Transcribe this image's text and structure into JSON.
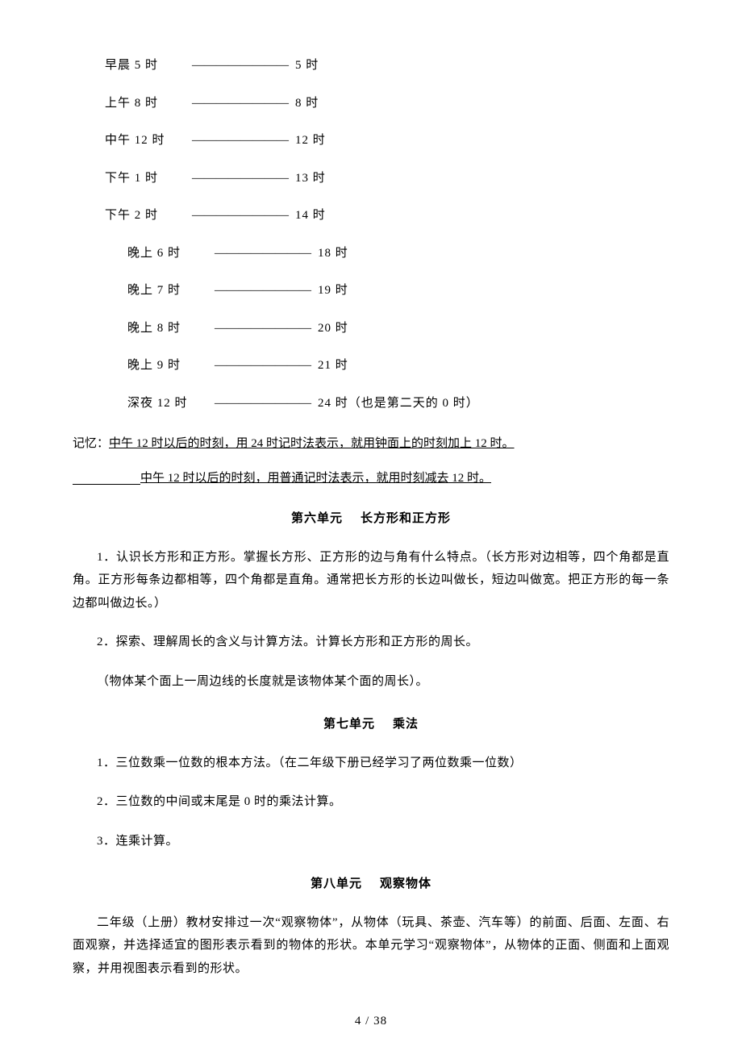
{
  "timeRows": [
    {
      "pad": "pad-0",
      "left": "早晨 5 时",
      "dash": "――――――――",
      "right": "5 时"
    },
    {
      "pad": "pad-0",
      "left": "上午 8 时",
      "dash": "――――――――",
      "right": "8 时"
    },
    {
      "pad": "pad-0",
      "left": "中午 12 时",
      "dash": "――――――――",
      "right": "12 时"
    },
    {
      "pad": "pad-0",
      "left": "下午 1 时",
      "dash": "――――――――",
      "right": "13 时"
    },
    {
      "pad": "pad-0",
      "left": "下午 2 时",
      "dash": "――――――――",
      "right": "14 时"
    },
    {
      "pad": "pad-1",
      "left": "晚上 6 时",
      "dash": "――――――――",
      "right": "18 时"
    },
    {
      "pad": "pad-1",
      "left": "晚上 7 时",
      "dash": "――――――――",
      "right": "19 时"
    },
    {
      "pad": "pad-1",
      "left": "晚上 8 时",
      "dash": "――――――――",
      "right": "20 时"
    },
    {
      "pad": "pad-1",
      "left": "晚上 9 时",
      "dash": "――――――――",
      "right": "21 时"
    },
    {
      "pad": "pad-2",
      "left": "深夜 12 时",
      "dash": "――――――――",
      "right": "24 时（也是第二天的 0 时）"
    }
  ],
  "memo": {
    "prefix": "记忆：",
    "line1": "中午 12 时以后的时刻，用 24 时记时法表示，就用钟面上的时刻加上 12 时。",
    "line2": "中午 12 时以后的时刻，用普通记时法表示，就用时刻减去 12 时。"
  },
  "unit6": {
    "titleA": "第六单元",
    "titleB": "长方形和正方形",
    "p1": "1．认识长方形和正方形。掌握长方形、正方形的边与角有什么特点。（长方形对边相等，四个角都是直角。正方形每条边都相等，四个角都是直角。通常把长方形的长边叫做长，短边叫做宽。把正方形的每一条边都叫做边长。）",
    "p2": "2．探索、理解周长的含义与计算方法。计算长方形和正方形的周长。",
    "p3": "（物体某个面上一周边线的长度就是该物体某个面的周长）。"
  },
  "unit7": {
    "titleA": "第七单元",
    "titleB": "乘法",
    "p1": "1．三位数乘一位数的根本方法。（在二年级下册已经学习了两位数乘一位数）",
    "p2": "2．三位数的中间或末尾是 0 时的乘法计算。",
    "p3": "3．连乘计算。"
  },
  "unit8": {
    "titleA": "第八单元",
    "titleB": "观察物体",
    "p1": "二年级（上册）教材安排过一次“观察物体”，从物体（玩具、茶壶、汽车等）的前面、后面、左面、右面观察，并选择适宜的图形表示看到的物体的形状。本单元学习“观察物体”，从物体的正面、侧面和上面观察，并用视图表示看到的形状。"
  },
  "pageNumber": "4  /  38"
}
